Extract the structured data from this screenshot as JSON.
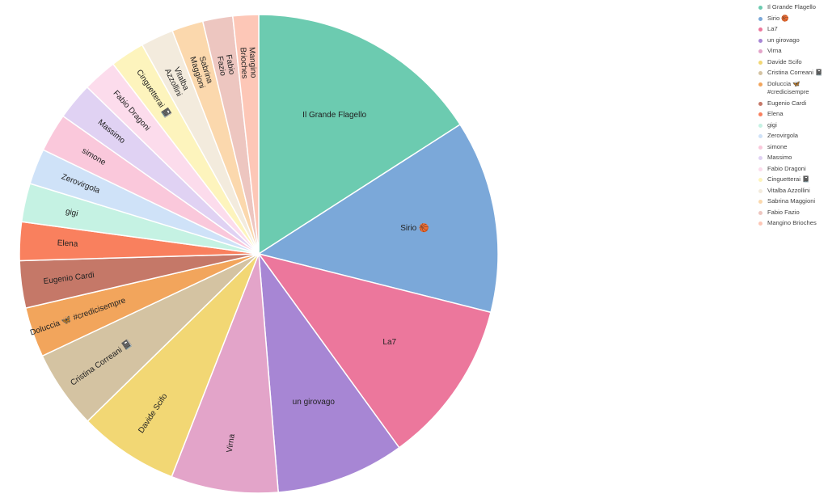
{
  "chart_data": {
    "type": "pie",
    "title": "",
    "legend_placement": "top-right",
    "start_angle_deg": 0,
    "direction": "clockwise",
    "slices": [
      {
        "label": "Il Grande Flagello",
        "value": 16.5,
        "color": "#6ccbb0"
      },
      {
        "label": "Sirio 🏀",
        "value": 13.5,
        "color": "#7ba8d9"
      },
      {
        "label": "La7",
        "value": 11.5,
        "color": "#ec779c"
      },
      {
        "label": "un girovago",
        "value": 9.0,
        "color": "#a786d4"
      },
      {
        "label": "Virna",
        "value": 7.5,
        "color": "#e3a4c9"
      },
      {
        "label": "Davide Scifo",
        "value": 7.0,
        "color": "#f2d774"
      },
      {
        "label": "Cristina Correani 📓",
        "value": 5.5,
        "color": "#d4c3a2"
      },
      {
        "label": "Doluccia 🦋 #credicisempre",
        "value": 3.5,
        "color": "#f2a55c"
      },
      {
        "label": "Eugenio Cardi",
        "value": 3.3,
        "color": "#c57868"
      },
      {
        "label": "Elena",
        "value": 2.7,
        "color": "#f9805e"
      },
      {
        "label": "gigi",
        "value": 2.7,
        "color": "#c5f2e3"
      },
      {
        "label": "Zerovirgola",
        "value": 2.5,
        "color": "#cfe2f8"
      },
      {
        "label": "simone",
        "value": 2.7,
        "color": "#fac8db"
      },
      {
        "label": "Massimo",
        "value": 2.6,
        "color": "#e0d2f3"
      },
      {
        "label": "Fabio Dragoni",
        "value": 2.4,
        "color": "#fcdcec"
      },
      {
        "label": "Cinguetterai 📓",
        "value": 2.4,
        "color": "#fdf4bd"
      },
      {
        "label": "Vitalba Azzollini",
        "value": 2.3,
        "color": "#f3ebdd"
      },
      {
        "label": "Sabrina Maggioni",
        "value": 2.2,
        "color": "#fbd8ad"
      },
      {
        "label": "Fabio Fazio",
        "value": 2.1,
        "color": "#edc6c0"
      },
      {
        "label": "Mangino Brioches",
        "value": 1.8,
        "color": "#fdc7b7"
      }
    ]
  },
  "legend": {
    "items": [
      "Il Grande Flagello",
      "Sirio 🏀",
      "La7",
      "un girovago",
      "Virna",
      "Davide Scifo",
      "Cristina Correani 📓",
      "Doluccia 🦋\n#credicisempre",
      "Eugenio Cardi",
      "Elena",
      "gigi",
      "Zerovirgola",
      "simone",
      "Massimo",
      "Fabio Dragoni",
      "Cinguetterai 📓",
      "Vitalba Azzollini",
      "Sabrina Maggioni",
      "Fabio Fazio",
      "Mangino Brioches"
    ]
  }
}
